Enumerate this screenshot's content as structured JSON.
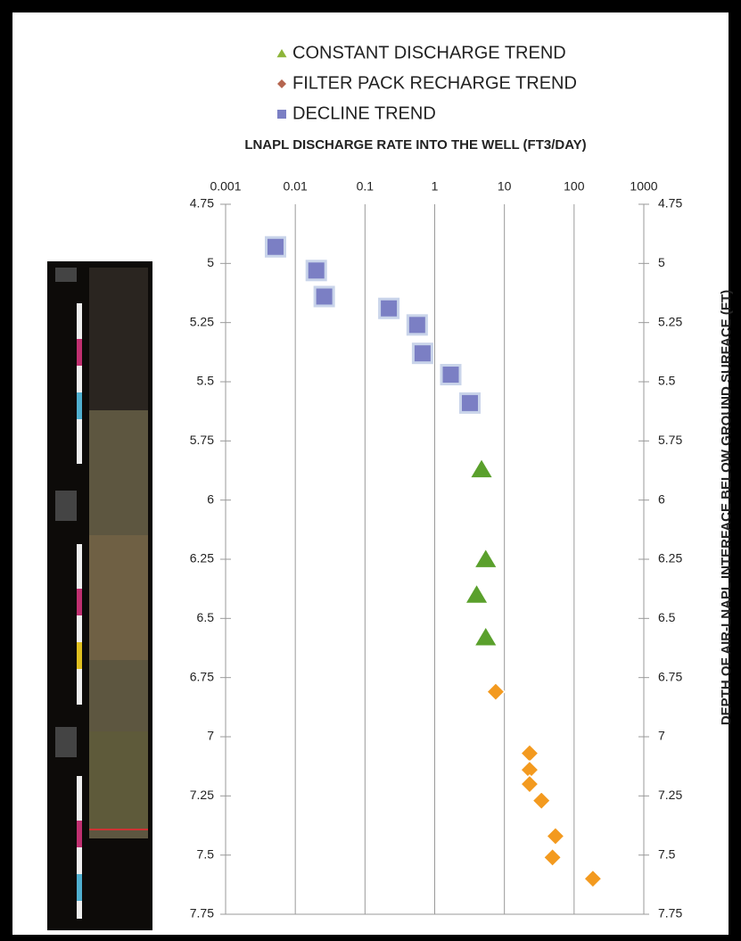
{
  "chart_data": {
    "type": "scatter",
    "title": "LNAPL DISCHARGE RATE INTO THE WELL (FT3/DAY)",
    "y_label": "DEPTH OF AIR-LNAPL INTERFACE BELOW GROUND SURFACE (FT)",
    "x_scale": "log",
    "y_inverted": true,
    "grid": "x",
    "xlim": [
      0.001,
      1000
    ],
    "xticks": [
      0.001,
      0.01,
      0.1,
      1,
      10,
      100,
      1000
    ],
    "ylim": [
      4.75,
      7.75
    ],
    "yticks": [
      4.75,
      5,
      5.25,
      5.5,
      5.75,
      6,
      6.25,
      6.5,
      6.75,
      7,
      7.25,
      7.5,
      7.75
    ],
    "series": [
      {
        "name": "CONSTANT DISCHARGE TREND",
        "marker": "triangle",
        "color": "#5aa02c",
        "x": [
          4.7,
          5.4,
          4.0,
          5.4
        ],
        "values": [
          5.87,
          6.25,
          6.4,
          6.58
        ]
      },
      {
        "name": "FILTER PACK RECHARGE TREND",
        "marker": "diamond",
        "color": "#f39a1f",
        "x": [
          7.5,
          23,
          23,
          23,
          34,
          54,
          49,
          186
        ],
        "values": [
          6.81,
          7.07,
          7.14,
          7.2,
          7.27,
          7.42,
          7.51,
          7.6
        ]
      },
      {
        "name": "DECLINE TREND",
        "marker": "square",
        "color": "#7b7fc4",
        "x": [
          0.0052,
          0.02,
          0.026,
          0.22,
          0.56,
          0.67,
          1.7,
          3.2
        ],
        "values": [
          4.93,
          5.03,
          5.14,
          5.19,
          5.26,
          5.38,
          5.47,
          5.59
        ]
      }
    ]
  }
}
